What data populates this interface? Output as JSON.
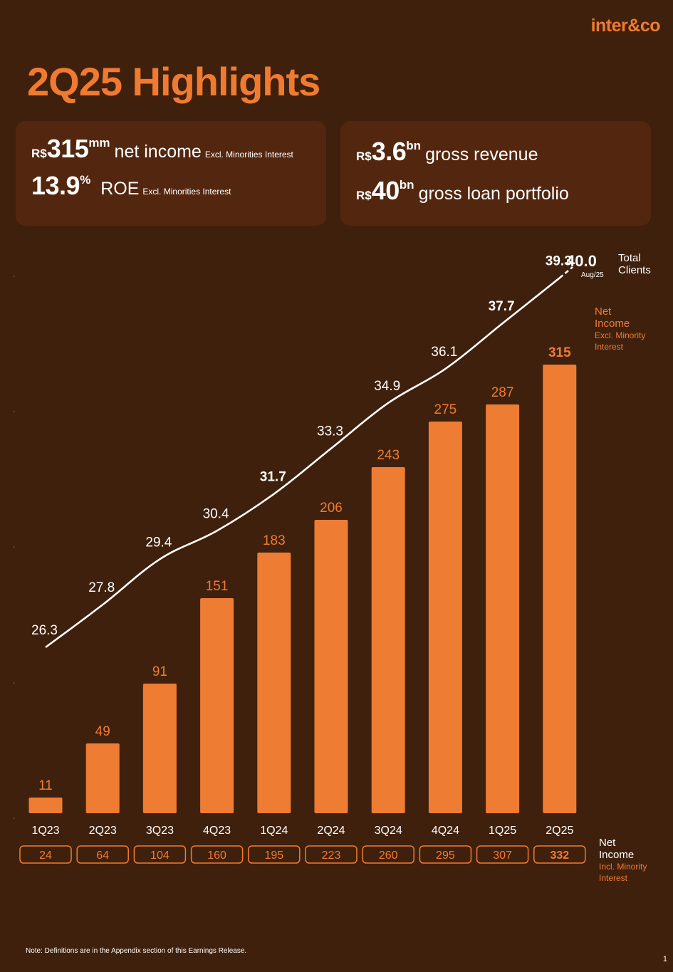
{
  "brand": {
    "logo_text": "inter&co"
  },
  "page": {
    "title": "2Q25 Highlights",
    "note": "Note: Definitions are in the Appendix section of this Earnings Release.",
    "page_number": "1"
  },
  "kpis": {
    "net_income": {
      "currency": "R$",
      "value": "315",
      "unit": "mm",
      "label": "net income",
      "sublabel": "Excl. Minorities Interest"
    },
    "roe": {
      "value": "13.9",
      "unit": "%",
      "label": "ROE",
      "sublabel": "Excl. Minorities Interest"
    },
    "gross_revenue": {
      "currency": "R$",
      "value": "3.6",
      "unit": "bn",
      "label": "gross revenue"
    },
    "loan_portfolio": {
      "currency": "R$",
      "value": "40",
      "unit": "bn",
      "label": "gross loan portfolio"
    }
  },
  "colors": {
    "background": "#3f200c",
    "card": "#53270f",
    "accent": "#f07b30",
    "bar": "#ef7c33",
    "text": "#ffffff"
  },
  "chart_data": {
    "type": "bar",
    "categories": [
      "1Q23",
      "2Q23",
      "3Q23",
      "4Q23",
      "1Q24",
      "2Q24",
      "3Q24",
      "4Q24",
      "1Q25",
      "2Q25"
    ],
    "series": [
      {
        "name": "Net Income Excl. Minority Interest",
        "type": "bar",
        "values": [
          11,
          49,
          91,
          151,
          183,
          206,
          243,
          275,
          287,
          315
        ]
      },
      {
        "name": "Total Clients",
        "type": "line",
        "values": [
          26.3,
          27.8,
          29.4,
          30.4,
          31.7,
          33.3,
          34.9,
          36.1,
          37.7,
          39.3
        ]
      },
      {
        "name": "Net Income Incl. Minority Interest",
        "type": "table",
        "values": [
          24,
          64,
          104,
          160,
          195,
          223,
          260,
          295,
          307,
          332
        ]
      }
    ],
    "bold_clients": [
      4,
      8,
      9
    ],
    "extra_point": {
      "value": "40.0",
      "label": "Aug/25"
    },
    "ylim": [
      0,
      330
    ],
    "legend": {
      "clients": [
        "Total",
        "Clients"
      ],
      "net_income_excl": [
        "Net",
        "Income",
        "Excl. Minority",
        "Interest"
      ],
      "net_income_incl": [
        "Net",
        "Income",
        "Incl. Minority",
        "Interest"
      ]
    }
  }
}
